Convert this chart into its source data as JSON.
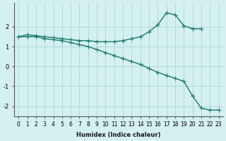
{
  "xlabel": "Humidex (Indice chaleur)",
  "background_color": "#d4f0f0",
  "grid_color": "#b0d8d8",
  "line_color": "#1a7a6a",
  "x_values": [
    0,
    1,
    2,
    3,
    4,
    5,
    6,
    7,
    8,
    9,
    10,
    11,
    12,
    13,
    14,
    15,
    16,
    17,
    18,
    19,
    20,
    21,
    22,
    23
  ],
  "line1": [
    1.5,
    1.6,
    1.55,
    1.5,
    1.45,
    1.4,
    1.35,
    1.3,
    1.3,
    1.25,
    1.25,
    1.25,
    1.3,
    1.4,
    1.5,
    1.75,
    2.1,
    2.7,
    2.6,
    2.05,
    1.9,
    1.9,
    null,
    null
  ],
  "line2": [
    1.5,
    1.6,
    1.55,
    1.5,
    1.45,
    1.4,
    1.35,
    1.3,
    1.3,
    1.25,
    1.25,
    1.25,
    1.3,
    1.4,
    1.5,
    1.75,
    2.1,
    2.7,
    2.6,
    2.05,
    null,
    null,
    null,
    null
  ],
  "line3": [
    1.5,
    1.5,
    1.5,
    1.4,
    1.35,
    1.3,
    1.2,
    1.1,
    1.0,
    0.85,
    0.7,
    0.55,
    0.4,
    0.25,
    0.1,
    -0.1,
    -0.3,
    -0.45,
    -0.6,
    -0.75,
    -1.5,
    -2.1,
    -2.2,
    -2.2
  ],
  "ylim": [
    -2.5,
    3.2
  ],
  "yticks": [
    -2,
    -1,
    0,
    1,
    2
  ],
  "xticks": [
    0,
    1,
    2,
    3,
    4,
    5,
    6,
    7,
    8,
    9,
    10,
    11,
    12,
    13,
    14,
    15,
    16,
    17,
    18,
    19,
    20,
    21,
    22,
    23
  ],
  "marker": "+"
}
